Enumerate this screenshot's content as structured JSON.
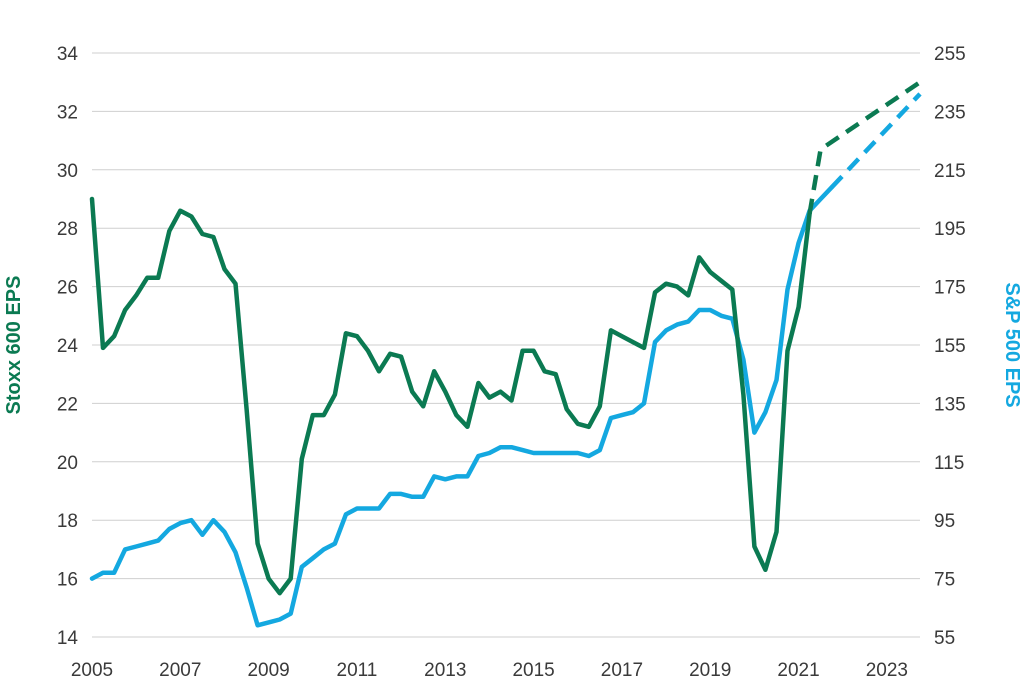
{
  "chart_data": {
    "type": "line",
    "xlabel": "",
    "x_ticks": [
      "2005",
      "2007",
      "2009",
      "2011",
      "2013",
      "2015",
      "2017",
      "2019",
      "2021",
      "2023"
    ],
    "xlim": [
      2005,
      2023.75
    ],
    "y_left": {
      "label": "Stoxx 600 EPS",
      "lim": [
        14,
        34
      ],
      "ticks": [
        "14",
        "16",
        "18",
        "20",
        "22",
        "24",
        "26",
        "28",
        "30",
        "32",
        "34"
      ],
      "color": "#0b7a52"
    },
    "y_right": {
      "label": "S&P 500 EPS",
      "lim": [
        55,
        255
      ],
      "ticks": [
        "55",
        "75",
        "95",
        "115",
        "135",
        "155",
        "175",
        "195",
        "215",
        "235",
        "255"
      ],
      "color": "#14a8e0"
    },
    "grid": "horizontal",
    "series": [
      {
        "name": "Stoxx 600 EPS",
        "axis": "left",
        "color": "#0b7a52",
        "x": [
          2005.0,
          2005.25,
          2005.5,
          2005.75,
          2006.0,
          2006.25,
          2006.5,
          2006.75,
          2007.0,
          2007.25,
          2007.5,
          2007.75,
          2008.0,
          2008.25,
          2008.5,
          2008.75,
          2009.0,
          2009.25,
          2009.5,
          2009.75,
          2010.0,
          2010.25,
          2010.5,
          2010.75,
          2011.0,
          2011.25,
          2011.5,
          2011.75,
          2012.0,
          2012.25,
          2012.5,
          2012.75,
          2013.0,
          2013.25,
          2013.5,
          2013.75,
          2014.0,
          2014.25,
          2014.5,
          2014.75,
          2015.0,
          2015.25,
          2015.5,
          2015.75,
          2016.0,
          2016.25,
          2016.5,
          2016.75,
          2017.0,
          2017.25,
          2017.5,
          2017.75,
          2018.0,
          2018.25,
          2018.5,
          2018.75,
          2019.0,
          2019.25,
          2019.5,
          2019.75,
          2020.0,
          2020.25,
          2020.5,
          2020.75,
          2021.0,
          2021.25
        ],
        "values": [
          29.0,
          23.9,
          24.3,
          25.2,
          25.7,
          26.3,
          26.3,
          27.9,
          28.6,
          28.4,
          27.8,
          27.7,
          26.6,
          26.1,
          21.8,
          17.2,
          16.0,
          15.5,
          16.0,
          20.1,
          21.6,
          21.6,
          22.3,
          24.4,
          24.3,
          23.8,
          23.1,
          23.7,
          23.6,
          22.4,
          21.9,
          23.1,
          22.4,
          21.6,
          21.2,
          22.7,
          22.2,
          22.4,
          22.1,
          23.8,
          23.8,
          23.1,
          23.0,
          21.8,
          21.3,
          21.2,
          21.9,
          24.5,
          24.3,
          24.1,
          23.9,
          25.8,
          26.1,
          26.0,
          25.7,
          27.0,
          26.5,
          26.2,
          25.9,
          22.3,
          17.1,
          16.3,
          17.6,
          23.8,
          25.3,
          28.5
        ]
      },
      {
        "name": "S&P 500 EPS",
        "axis": "right",
        "color": "#14a8e0",
        "x": [
          2005.0,
          2005.25,
          2005.5,
          2005.75,
          2006.0,
          2006.25,
          2006.5,
          2006.75,
          2007.0,
          2007.25,
          2007.5,
          2007.75,
          2008.0,
          2008.25,
          2008.5,
          2008.75,
          2009.0,
          2009.25,
          2009.5,
          2009.75,
          2010.0,
          2010.25,
          2010.5,
          2010.75,
          2011.0,
          2011.25,
          2011.5,
          2011.75,
          2012.0,
          2012.25,
          2012.5,
          2012.75,
          2013.0,
          2013.25,
          2013.5,
          2013.75,
          2014.0,
          2014.25,
          2014.5,
          2014.75,
          2015.0,
          2015.25,
          2015.5,
          2015.75,
          2016.0,
          2016.25,
          2016.5,
          2016.75,
          2017.0,
          2017.25,
          2017.5,
          2017.75,
          2018.0,
          2018.25,
          2018.5,
          2018.75,
          2019.0,
          2019.25,
          2019.5,
          2019.75,
          2020.0,
          2020.25,
          2020.5,
          2020.75,
          2021.0,
          2021.25,
          2021.5,
          2021.75
        ],
        "values": [
          75,
          77,
          77,
          85,
          86,
          87,
          88,
          92,
          94,
          95,
          90,
          95,
          91,
          84,
          72,
          59,
          60,
          61,
          63,
          79,
          82,
          85,
          87,
          97,
          99,
          99,
          99,
          104,
          104,
          103,
          103,
          110,
          109,
          110,
          110,
          117,
          118,
          120,
          120,
          119,
          118,
          118,
          118,
          118,
          118,
          117,
          119,
          130,
          131,
          132,
          135,
          156,
          160,
          162,
          163,
          167,
          167,
          165,
          164,
          150,
          125,
          132,
          143,
          174,
          190,
          201,
          205,
          209
        ]
      }
    ],
    "forecasts": [
      {
        "name": "Stoxx 600 EPS",
        "axis": "left",
        "color": "#0b7a52",
        "x": [
          2021.25,
          2021.5,
          2023.75
        ],
        "values": [
          28.5,
          30.7,
          33.0
        ]
      },
      {
        "name": "S&P 500 EPS",
        "axis": "right",
        "color": "#14a8e0",
        "x": [
          2021.75,
          2023.75
        ],
        "values": [
          209,
          241
        ]
      }
    ]
  }
}
